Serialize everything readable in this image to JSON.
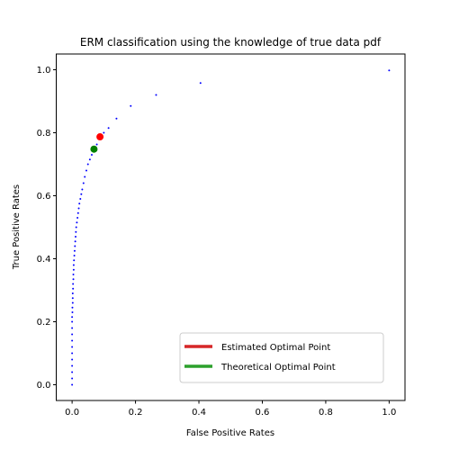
{
  "chart_data": {
    "type": "scatter",
    "title": "ERM classification using the knowledge of true data pdf",
    "xlabel": "False Positive Rates",
    "ylabel": "True Positive Rates",
    "xlim": [
      -0.05,
      1.05
    ],
    "ylim": [
      -0.05,
      1.05
    ],
    "xticks": [
      0.0,
      0.2,
      0.4,
      0.6,
      0.8,
      1.0
    ],
    "xtick_labels": [
      "0.0",
      "0.2",
      "0.4",
      "0.6",
      "0.8",
      "1.0"
    ],
    "yticks": [
      0.0,
      0.2,
      0.4,
      0.6,
      0.8,
      1.0
    ],
    "ytick_labels": [
      "0.0",
      "0.2",
      "0.4",
      "0.6",
      "0.8",
      "1.0"
    ],
    "grid": false,
    "legend_position": "lower-right",
    "roc_color": "#0000ff",
    "roc_points": [
      [
        0.0,
        0.0
      ],
      [
        0.0,
        0.02
      ],
      [
        0.0,
        0.04
      ],
      [
        0.0,
        0.06
      ],
      [
        0.0,
        0.08
      ],
      [
        0.0,
        0.1
      ],
      [
        0.0,
        0.12
      ],
      [
        0.0,
        0.14
      ],
      [
        0.0,
        0.16
      ],
      [
        0.0,
        0.18
      ],
      [
        0.0,
        0.2
      ],
      [
        0.0,
        0.215
      ],
      [
        0.001,
        0.23
      ],
      [
        0.001,
        0.245
      ],
      [
        0.002,
        0.26
      ],
      [
        0.002,
        0.275
      ],
      [
        0.002,
        0.29
      ],
      [
        0.003,
        0.305
      ],
      [
        0.003,
        0.32
      ],
      [
        0.004,
        0.335
      ],
      [
        0.004,
        0.35
      ],
      [
        0.005,
        0.365
      ],
      [
        0.005,
        0.38
      ],
      [
        0.006,
        0.395
      ],
      [
        0.007,
        0.41
      ],
      [
        0.008,
        0.425
      ],
      [
        0.009,
        0.44
      ],
      [
        0.01,
        0.455
      ],
      [
        0.011,
        0.47
      ],
      [
        0.012,
        0.485
      ],
      [
        0.013,
        0.5
      ],
      [
        0.015,
        0.515
      ],
      [
        0.017,
        0.53
      ],
      [
        0.019,
        0.545
      ],
      [
        0.021,
        0.56
      ],
      [
        0.023,
        0.575
      ],
      [
        0.026,
        0.59
      ],
      [
        0.029,
        0.605
      ],
      [
        0.032,
        0.62
      ],
      [
        0.036,
        0.64
      ],
      [
        0.04,
        0.66
      ],
      [
        0.045,
        0.68
      ],
      [
        0.05,
        0.7
      ],
      [
        0.056,
        0.715
      ],
      [
        0.062,
        0.73
      ],
      [
        0.069,
        0.745
      ],
      [
        0.078,
        0.763
      ],
      [
        0.088,
        0.78
      ],
      [
        0.1,
        0.8
      ],
      [
        0.115,
        0.815
      ],
      [
        0.14,
        0.845
      ],
      [
        0.185,
        0.885
      ],
      [
        0.265,
        0.92
      ],
      [
        0.405,
        0.958
      ],
      [
        1.0,
        0.998
      ]
    ],
    "estimated_point": {
      "x": 0.088,
      "y": 0.787,
      "color": "#ff0000"
    },
    "theoretical_point": {
      "x": 0.069,
      "y": 0.748,
      "color": "#008000"
    },
    "legend": [
      {
        "label": "Estimated Optimal Point",
        "color": "#d62728"
      },
      {
        "label": "Theoretical Optimal Point",
        "color": "#2ca02c"
      }
    ]
  }
}
